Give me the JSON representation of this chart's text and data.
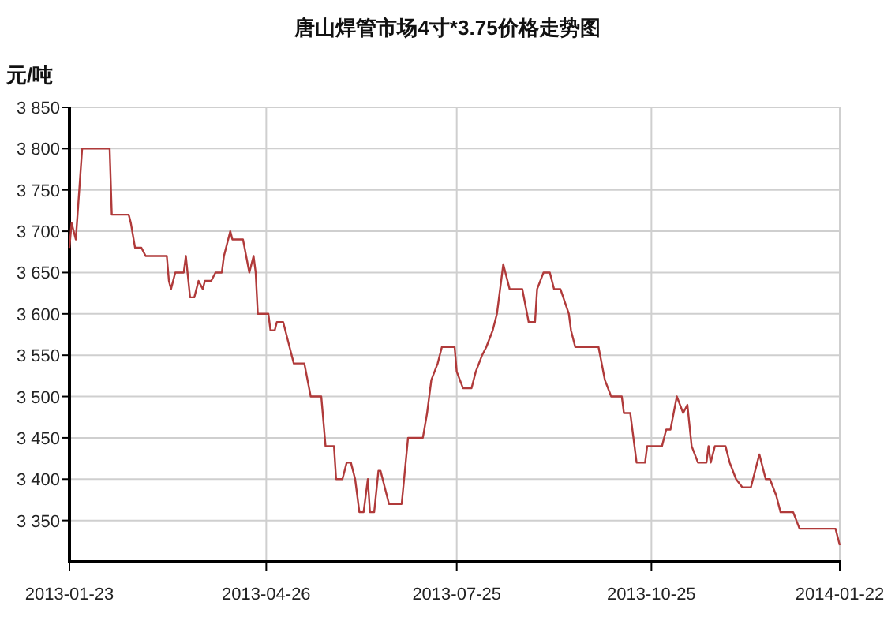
{
  "chart_data": {
    "type": "line",
    "title": "唐山焊管市场4寸*3.75价格走势图",
    "ylabel": "元/吨",
    "x": [
      "2013-01-23",
      "2013-01-24",
      "2013-01-26",
      "2013-01-29",
      "2013-02-11",
      "2013-02-12",
      "2013-02-20",
      "2013-02-21",
      "2013-02-23",
      "2013-02-26",
      "2013-02-28",
      "2013-03-10",
      "2013-03-11",
      "2013-03-12",
      "2013-03-14",
      "2013-03-18",
      "2013-03-19",
      "2013-03-21",
      "2013-03-23",
      "2013-03-25",
      "2013-03-27",
      "2013-03-28",
      "2013-03-31",
      "2013-04-02",
      "2013-04-05",
      "2013-04-06",
      "2013-04-09",
      "2013-04-10",
      "2013-04-15",
      "2013-04-18",
      "2013-04-20",
      "2013-04-21",
      "2013-04-22",
      "2013-04-27",
      "2013-04-28",
      "2013-04-30",
      "2013-05-01",
      "2013-05-04",
      "2013-05-07",
      "2013-05-09",
      "2013-05-14",
      "2013-05-17",
      "2013-05-22",
      "2013-05-24",
      "2013-05-28",
      "2013-05-29",
      "2013-06-01",
      "2013-06-03",
      "2013-06-05",
      "2013-06-07",
      "2013-06-09",
      "2013-06-11",
      "2013-06-13",
      "2013-06-14",
      "2013-06-16",
      "2013-06-18",
      "2013-06-19",
      "2013-06-21",
      "2013-06-23",
      "2013-06-29",
      "2013-07-02",
      "2013-07-09",
      "2013-07-11",
      "2013-07-13",
      "2013-07-16",
      "2013-07-18",
      "2013-07-24",
      "2013-07-25",
      "2013-07-28",
      "2013-08-01",
      "2013-08-03",
      "2013-08-06",
      "2013-08-08",
      "2013-08-11",
      "2013-08-13",
      "2013-08-16",
      "2013-08-19",
      "2013-08-25",
      "2013-08-28",
      "2013-08-31",
      "2013-09-01",
      "2013-09-04",
      "2013-09-07",
      "2013-09-09",
      "2013-09-12",
      "2013-09-16",
      "2013-09-17",
      "2013-09-19",
      "2013-09-30",
      "2013-10-03",
      "2013-10-06",
      "2013-10-11",
      "2013-10-12",
      "2013-10-15",
      "2013-10-18",
      "2013-10-22",
      "2013-10-23",
      "2013-10-30",
      "2013-11-01",
      "2013-11-03",
      "2013-11-06",
      "2013-11-09",
      "2013-11-11",
      "2013-11-13",
      "2013-11-16",
      "2013-11-20",
      "2013-11-21",
      "2013-11-22",
      "2013-11-24",
      "2013-11-29",
      "2013-12-01",
      "2013-12-04",
      "2013-12-07",
      "2013-12-11",
      "2013-12-15",
      "2013-12-18",
      "2013-12-20",
      "2013-12-23",
      "2013-12-25",
      "2013-12-31",
      "2014-01-03",
      "2014-01-20",
      "2014-01-22"
    ],
    "series": [
      {
        "color": "#b03a3a",
        "values": [
          3680,
          3710,
          3690,
          3800,
          3800,
          3720,
          3720,
          3710,
          3680,
          3680,
          3670,
          3670,
          3640,
          3630,
          3650,
          3650,
          3670,
          3620,
          3620,
          3640,
          3630,
          3640,
          3640,
          3650,
          3650,
          3670,
          3700,
          3690,
          3690,
          3650,
          3670,
          3650,
          3600,
          3600,
          3580,
          3580,
          3590,
          3590,
          3560,
          3540,
          3540,
          3500,
          3500,
          3440,
          3440,
          3400,
          3400,
          3420,
          3420,
          3400,
          3360,
          3360,
          3400,
          3360,
          3360,
          3410,
          3410,
          3390,
          3370,
          3370,
          3450,
          3450,
          3480,
          3520,
          3540,
          3560,
          3560,
          3530,
          3510,
          3510,
          3530,
          3550,
          3560,
          3580,
          3600,
          3660,
          3630,
          3630,
          3590,
          3590,
          3630,
          3650,
          3650,
          3630,
          3630,
          3600,
          3580,
          3560,
          3560,
          3520,
          3500,
          3500,
          3480,
          3480,
          3420,
          3420,
          3440,
          3440,
          3460,
          3460,
          3500,
          3480,
          3490,
          3440,
          3420,
          3420,
          3440,
          3420,
          3440,
          3440,
          3420,
          3400,
          3390,
          3390,
          3430,
          3400,
          3400,
          3380,
          3360,
          3360,
          3340,
          3340,
          3320
        ]
      }
    ],
    "xlim": [
      "2013-01-23",
      "2014-01-22"
    ],
    "xticks": [
      "2013-01-23",
      "2013-04-26",
      "2013-07-25",
      "2013-10-25",
      "2014-01-22"
    ],
    "ylim": [
      3300,
      3850
    ],
    "yticks": [
      {
        "value": 3350,
        "label": "3 350"
      },
      {
        "value": 3400,
        "label": "3 400"
      },
      {
        "value": 3450,
        "label": "3 450"
      },
      {
        "value": 3500,
        "label": "3 500"
      },
      {
        "value": 3550,
        "label": "3 550"
      },
      {
        "value": 3600,
        "label": "3 600"
      },
      {
        "value": 3650,
        "label": "3 650"
      },
      {
        "value": 3700,
        "label": "3 700"
      },
      {
        "value": 3750,
        "label": "3 750"
      },
      {
        "value": 3800,
        "label": "3 800"
      },
      {
        "value": 3850,
        "label": "3 850"
      }
    ],
    "grid": true,
    "marker": "none",
    "line_style": "solid"
  }
}
